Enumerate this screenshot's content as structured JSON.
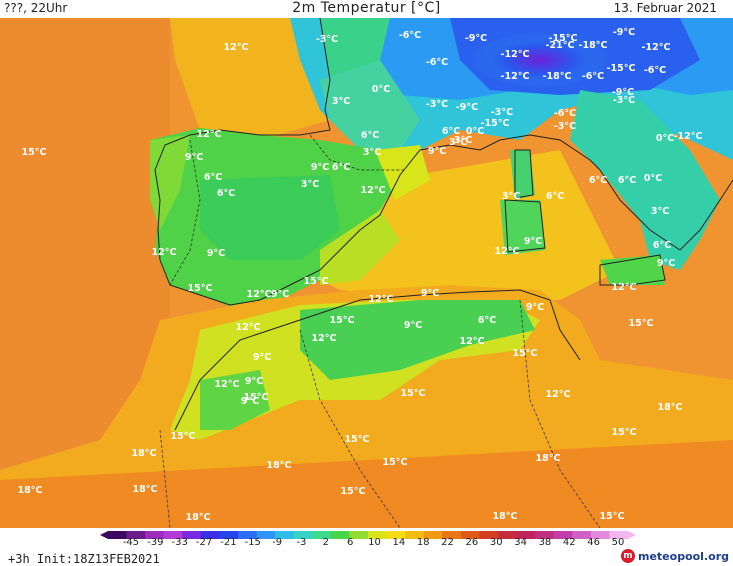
{
  "header": {
    "left": "???, 22Uhr",
    "title": "2m Temperatur [°C]",
    "date": "13. Februar 2021"
  },
  "map": {
    "description": "2 m temperature forecast over the Iberian Peninsula, southern France, Italy and northwest Africa",
    "labels": [
      {
        "text": "12°C"
      },
      {
        "text": "-3°C"
      },
      {
        "text": "-6°C"
      },
      {
        "text": "-9°C"
      },
      {
        "text": "-15°C"
      },
      {
        "text": "-9°C"
      },
      {
        "text": "-12°C"
      },
      {
        "text": "-21°C"
      },
      {
        "text": "-18°C"
      },
      {
        "text": "-12°C"
      },
      {
        "text": "-6°C"
      },
      {
        "text": "-12°C"
      },
      {
        "text": "-18°C"
      },
      {
        "text": "-6°C"
      },
      {
        "text": "-15°C"
      },
      {
        "text": "-6°C"
      },
      {
        "text": "0°C"
      },
      {
        "text": "3°C"
      },
      {
        "text": "-3°C"
      },
      {
        "text": "-9°C"
      },
      {
        "text": "-3°C"
      },
      {
        "text": "-15°C"
      },
      {
        "text": "-9°C"
      },
      {
        "text": "-3°C"
      },
      {
        "text": "-6°C"
      },
      {
        "text": "-3°C"
      },
      {
        "text": "12°C"
      },
      {
        "text": "6°C"
      },
      {
        "text": "6°C"
      },
      {
        "text": "0°C"
      },
      {
        "text": "0°C"
      },
      {
        "text": "-12°C"
      },
      {
        "text": "15°C"
      },
      {
        "text": "9°C"
      },
      {
        "text": "3°C"
      },
      {
        "text": "9°C"
      },
      {
        "text": "3°C"
      },
      {
        "text": "6°C"
      },
      {
        "text": "3°C"
      },
      {
        "text": "9°C"
      },
      {
        "text": "6°C"
      },
      {
        "text": "3°C"
      },
      {
        "text": "0°C"
      },
      {
        "text": "6°C"
      },
      {
        "text": "6°C"
      },
      {
        "text": "12°C"
      },
      {
        "text": "6°C"
      },
      {
        "text": "6°C"
      },
      {
        "text": "3°C"
      },
      {
        "text": "3°C"
      },
      {
        "text": "12°C"
      },
      {
        "text": "9°C"
      },
      {
        "text": "12°C"
      },
      {
        "text": "9°C"
      },
      {
        "text": "6°C"
      },
      {
        "text": "9°C"
      },
      {
        "text": "15°C"
      },
      {
        "text": "12°C"
      },
      {
        "text": "9°C"
      },
      {
        "text": "15°C"
      },
      {
        "text": "12°C"
      },
      {
        "text": "9°C"
      },
      {
        "text": "12°C"
      },
      {
        "text": "15°C"
      },
      {
        "text": "9°C"
      },
      {
        "text": "6°C"
      },
      {
        "text": "9°C"
      },
      {
        "text": "12°C"
      },
      {
        "text": "15°C"
      },
      {
        "text": "12°C"
      },
      {
        "text": "15°C"
      },
      {
        "text": "12°C"
      },
      {
        "text": "9°C"
      },
      {
        "text": "9°C"
      },
      {
        "text": "12°C"
      },
      {
        "text": "15°C"
      },
      {
        "text": "12°C"
      },
      {
        "text": "9°C"
      },
      {
        "text": "15°C"
      },
      {
        "text": "15°C"
      },
      {
        "text": "18°C"
      },
      {
        "text": "15°C"
      },
      {
        "text": "15°C"
      },
      {
        "text": "18°C"
      },
      {
        "text": "18°C"
      },
      {
        "text": "15°C"
      },
      {
        "text": "18°C"
      },
      {
        "text": "18°C"
      },
      {
        "text": "18°C"
      },
      {
        "text": "15°C"
      },
      {
        "text": "15°C"
      },
      {
        "text": "18°C"
      },
      {
        "text": "18°C"
      }
    ]
  },
  "scale": {
    "ticks": [
      "-45",
      "-39",
      "-33",
      "-27",
      "-21",
      "-15",
      "-9",
      "-3",
      "2",
      "6",
      "10",
      "14",
      "18",
      "22",
      "26",
      "30",
      "34",
      "38",
      "42",
      "46",
      "50"
    ],
    "colors": [
      "#3b0a5e",
      "#6c1a8c",
      "#9b2cbe",
      "#b23ad6",
      "#7a2ae0",
      "#3d2ee8",
      "#2444f0",
      "#2a6cf2",
      "#2f94f3",
      "#2fbde8",
      "#36d3c5",
      "#3dd98c",
      "#47d64a",
      "#93dc2f",
      "#d9e51b",
      "#f6dc14",
      "#f5bc10",
      "#f09a12",
      "#e97716",
      "#df5a18",
      "#d43d22",
      "#c72a3a",
      "#c0245c",
      "#c03080",
      "#c23ea8",
      "#d05fc8",
      "#e28ae0",
      "#f3b6f0"
    ]
  },
  "footer": {
    "init": "+3h  Init:18Z13FEB2021",
    "brand": "meteopool.org"
  },
  "colors": {
    "sea": "#ee9230",
    "land_warm": "#f4a91d",
    "yellow": "#f4d61b",
    "green": "#48d248",
    "cyan": "#2cc6c6",
    "blue": "#2a68f0",
    "purple": "#6a22d8",
    "border": "#222222"
  }
}
